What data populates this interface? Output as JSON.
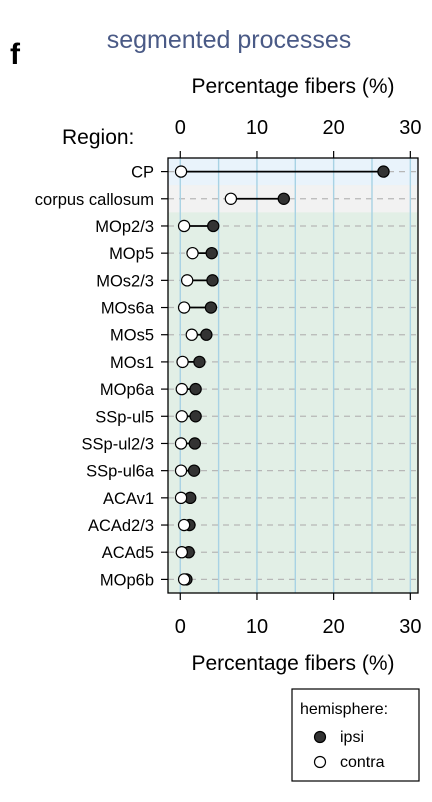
{
  "panel_letter": "f",
  "chart_data": {
    "type": "dot",
    "title": "segmented processes",
    "xlabel_top": "Percentage fibers (%)",
    "xlabel_bottom": "Percentage fibers (%)",
    "ylabel": "Region:",
    "xlim": [
      -1.6,
      31
    ],
    "xticks": [
      0,
      10,
      20,
      30
    ],
    "grid": true,
    "categories": [
      "CP",
      "corpus callosum",
      "MOp2/3",
      "MOp5",
      "MOs2/3",
      "MOs6a",
      "MOs5",
      "MOs1",
      "MOp6a",
      "SSp-ul5",
      "SSp-ul2/3",
      "SSp-ul6a",
      "ACAv1",
      "ACAd2/3",
      "ACAd5",
      "MOp6b"
    ],
    "series": [
      {
        "name": "ipsi",
        "values": [
          26.5,
          13.5,
          4.3,
          4.1,
          4.2,
          4.0,
          3.4,
          2.5,
          2.0,
          2.0,
          1.9,
          1.8,
          1.3,
          1.2,
          1.1,
          0.8
        ]
      },
      {
        "name": "contra",
        "values": [
          0.1,
          6.6,
          0.5,
          1.6,
          0.9,
          0.5,
          1.5,
          0.3,
          0.2,
          0.2,
          0.1,
          0.1,
          0.1,
          0.5,
          0.2,
          0.5
        ]
      }
    ],
    "band_colors": {
      "row_CP": "#e9f3fb",
      "row_corpus_callosum": "#f2f2f2",
      "rest": "#e2efe6"
    },
    "colors": {
      "ipsi": "#333333",
      "contra": "#ffffff",
      "grid_major": "#a8d2e4",
      "grid_row": "#b7b7b7",
      "frame": "#000000",
      "title": "#4a5a86"
    },
    "legend": {
      "title": "hemisphere:",
      "position": "bottom-right",
      "items": [
        "ipsi",
        "contra"
      ]
    }
  }
}
